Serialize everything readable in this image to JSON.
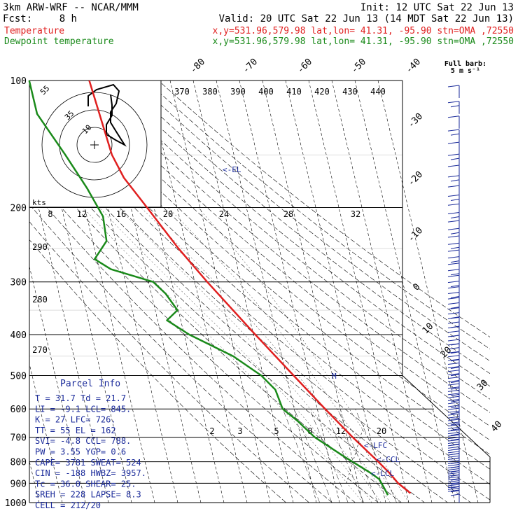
{
  "header": {
    "model": "3km ARW-WRF -- NCAR/MMM",
    "init": "Init: 12 UTC Sat 22 Jun 13",
    "fcst_label": "Fcst:",
    "fcst_value": "8 h",
    "valid": "Valid: 20 UTC Sat 22 Jun 13 (14 MDT Sat 22 Jun 13)",
    "line_temp": {
      "name": "Temperature",
      "info": "x,y=531.96,579.98   lat,lon= 41.31, -95.90  stn=OMA ,72550",
      "color": "#e02020"
    },
    "line_dew": {
      "name": "Dewpoint temperature",
      "info": "x,y=531.96,579.98   lat,lon= 41.31, -95.90  stn=OMA ,72550",
      "color": "#1a8a1a"
    }
  },
  "full_barb": {
    "line1": "Full barb:",
    "line2": "5 m s⁻¹"
  },
  "chart_data": {
    "type": "line",
    "title": "",
    "ylabel_units": "hPa",
    "pressure_levels": [
      100,
      200,
      300,
      400,
      500,
      600,
      700,
      800,
      900,
      1000
    ],
    "isotherm_labels": [
      -80,
      -70,
      -60,
      -50,
      -40,
      -30,
      -20,
      -10,
      0,
      10,
      20,
      30,
      40
    ],
    "theta_labels": [
      370,
      380,
      390,
      400,
      410,
      420,
      430,
      440
    ],
    "mixing_ratio_labels": [
      "2",
      "3",
      "5",
      "8",
      "12",
      "20"
    ],
    "thetae_labels": [
      "290",
      "280",
      "270"
    ],
    "hodograph": {
      "speed_ticks": [
        "8",
        "12",
        "16",
        "20",
        "24",
        "28",
        "32"
      ],
      "units": "kts",
      "rings": [
        "55",
        "35",
        "10"
      ]
    },
    "series": [
      {
        "name": "Temperature",
        "color": "#e02020",
        "points": [
          {
            "p": 950,
            "t": 31.7
          },
          {
            "p": 900,
            "t": 27.4
          },
          {
            "p": 850,
            "t": 24.6
          },
          {
            "p": 800,
            "t": 21.0
          },
          {
            "p": 700,
            "t": 12.4
          },
          {
            "p": 600,
            "t": 3.4
          },
          {
            "p": 500,
            "t": -6.8
          },
          {
            "p": 400,
            "t": -19.2
          },
          {
            "p": 300,
            "t": -34.6
          },
          {
            "p": 250,
            "t": -43.6
          },
          {
            "p": 200,
            "t": -53.0
          },
          {
            "p": 170,
            "t": -60.0
          },
          {
            "p": 150,
            "t": -62.8
          },
          {
            "p": 125,
            "t": -63.8
          },
          {
            "p": 100,
            "t": -65.0
          }
        ]
      },
      {
        "name": "Dewpoint temperature",
        "color": "#1a8a1a",
        "points": [
          {
            "p": 960,
            "t": 21.7
          },
          {
            "p": 930,
            "t": 21.0
          },
          {
            "p": 880,
            "t": 19.6
          },
          {
            "p": 850,
            "t": 16.4
          },
          {
            "p": 780,
            "t": 7.0
          },
          {
            "p": 700,
            "t": -4.0
          },
          {
            "p": 640,
            "t": -9.8
          },
          {
            "p": 600,
            "t": -15.0
          },
          {
            "p": 540,
            "t": -16.2
          },
          {
            "p": 500,
            "t": -20.8
          },
          {
            "p": 450,
            "t": -31.0
          },
          {
            "p": 400,
            "t": -47.8
          },
          {
            "p": 370,
            "t": -56.0
          },
          {
            "p": 350,
            "t": -50.4
          },
          {
            "p": 320,
            "t": -53.8
          },
          {
            "p": 300,
            "t": -58.0
          },
          {
            "p": 280,
            "t": -75.0
          },
          {
            "p": 265,
            "t": -81.0
          },
          {
            "p": 240,
            "t": -74.0
          },
          {
            "p": 210,
            "t": -73.0
          },
          {
            "p": 180,
            "t": -77.0
          },
          {
            "p": 150,
            "t": -83.0
          },
          {
            "p": 120,
            "t": -91.0
          },
          {
            "p": 100,
            "t": -91.0
          }
        ]
      }
    ],
    "annotations": [
      "<-EL",
      "<-LFC",
      "<-CCL",
      "<-LCL",
      "M"
    ]
  },
  "parcel_info": {
    "title": "Parcel Info",
    "rows": [
      "T  =   31.7 Td =  21.7",
      "LI =   -9.1 LCL=  845.",
      "K  =     27 LFC=  726.",
      "TT =     55 EL =   162",
      "SVI=   -4.8 CCL=  788.",
      "PW =   3.55 YGP=   0.6",
      "CAPE=  3781 SWEAT=  524",
      "CIN =  -188 HWBZ= 3957.",
      "Tc =   36.0 SHEAR=  25.",
      "SREH =  228 LAPSE=  8.3",
      "CELL = 212/20"
    ]
  },
  "colors": {
    "temperature": "#e02020",
    "dewpoint": "#1a8a1a",
    "parcel": "#1a2a9a",
    "barbs": "#1a2a9a"
  }
}
